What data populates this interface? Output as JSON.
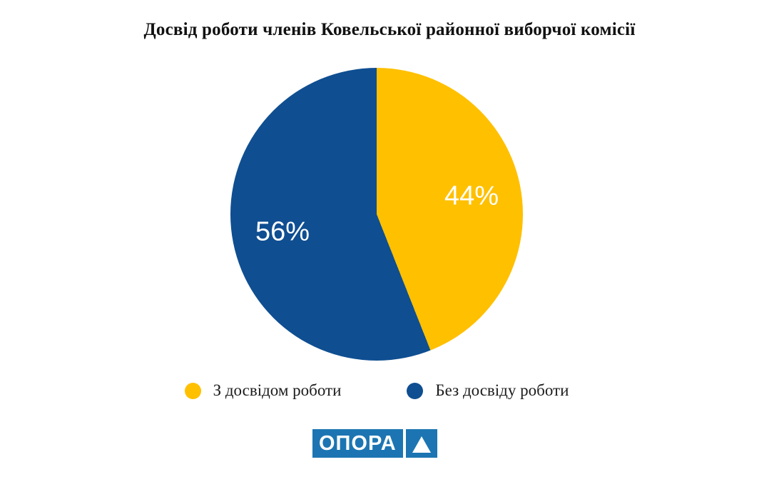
{
  "title": "Досвід роботи членів Ковельської районної виборчої комісії",
  "colors": {
    "experienced": "#FFC000",
    "inexperienced": "#0F4E91",
    "logo_blue": "#1C75B2",
    "slice_label_text": "#FFFFFF",
    "text": "#1C1C1C",
    "background": "#FFFFFF"
  },
  "chart_data": {
    "type": "pie",
    "title": "Досвід роботи членів Ковельської районної виборчої комісії",
    "labels": [
      "З досвідом роботи",
      "Без досвіду роботи"
    ],
    "values": [
      44,
      56
    ],
    "unit": "percent",
    "data_labels": [
      "44%",
      "56%"
    ],
    "colors": [
      "#FFC000",
      "#0F4E91"
    ],
    "start_angle_deg": 0,
    "direction": "clockwise",
    "grid": false,
    "legend_position": "bottom"
  },
  "legend": {
    "items": [
      {
        "label": "З досвідом роботи",
        "color": "#FFC000"
      },
      {
        "label": "Без досвіду роботи",
        "color": "#0F4E91"
      }
    ]
  },
  "logo": {
    "text": "ОПОРА",
    "icon": "triangle-up",
    "background": "#1C75B2",
    "text_color": "#FFFFFF"
  }
}
